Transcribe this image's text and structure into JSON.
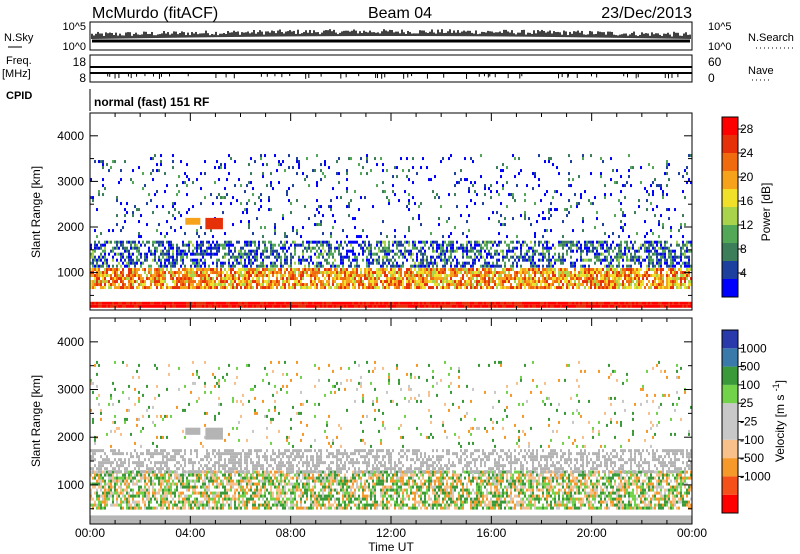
{
  "header": {
    "station": "McMurdo (fitACF)",
    "beam": "Beam 04",
    "date": "23/Dec/2013"
  },
  "noise_panel": {
    "left_label": "N.Sky",
    "right_label": "N.Search",
    "left_ticks": [
      "10^5",
      "10^0"
    ],
    "right_ticks": [
      "10^5",
      "10^0"
    ]
  },
  "freq_panel": {
    "left_label_1": "Freq.",
    "left_label_2": "[MHz]",
    "right_label": "Nave",
    "left_ticks": [
      "18",
      "8"
    ],
    "right_ticks": [
      "60",
      "0"
    ]
  },
  "cpid": {
    "label": "CPID",
    "program": "normal (fast) 151 RF"
  },
  "colors": {
    "power_scale": [
      "#0000ff",
      "#1d3f9e",
      "#3c7d5a",
      "#52a857",
      "#a8d34a",
      "#f0e02a",
      "#f6a21a",
      "#f06a0e",
      "#e63008",
      "#ff0000"
    ],
    "velocity_scale": [
      "#ff0000",
      "#f5501a",
      "#f59a2a",
      "#f8c08a",
      "#c8c8c8",
      "#c8c8c8",
      "#72d24a",
      "#3a9a3a",
      "#3a7aaa",
      "#2a3aaa"
    ],
    "ground_scatter": "#b4b4b4"
  },
  "chart_data": [
    {
      "type": "heatmap",
      "title": "",
      "xlabel": "Time UT",
      "ylabel": "Slant Range [km]",
      "x_ticks": [
        "00:00",
        "04:00",
        "08:00",
        "12:00",
        "16:00",
        "20:00",
        "00:00"
      ],
      "xlim": [
        0,
        24
      ],
      "ylim": [
        180,
        4500
      ],
      "y_ticks": [
        1000,
        2000,
        3000,
        4000
      ],
      "colorbar": {
        "label": "Power [dB]",
        "ticks": [
          4,
          8,
          12,
          16,
          20,
          24,
          28
        ],
        "range": [
          0,
          30
        ]
      },
      "bands": [
        {
          "name": "ground_scatter_red",
          "range_km": [
            230,
            360
          ],
          "value_db": 28,
          "coverage": 1.0
        },
        {
          "name": "main_echo_band",
          "range_km": [
            650,
            1100
          ],
          "value_db": 20,
          "coverage": 0.8
        },
        {
          "name": "upper_band",
          "range_km": [
            1150,
            1700
          ],
          "value_db": 6,
          "coverage": 0.55
        },
        {
          "name": "sparse_high",
          "range_km": [
            1800,
            3600
          ],
          "value_db": 4,
          "coverage": 0.08
        }
      ],
      "patches": [
        {
          "time_h": [
            3.8,
            4.4
          ],
          "range_km": [
            2050,
            2200
          ],
          "value_db": 18
        },
        {
          "time_h": [
            4.6,
            5.3
          ],
          "range_km": [
            1950,
            2200
          ],
          "value_db": 24
        }
      ]
    },
    {
      "type": "heatmap",
      "title": "",
      "xlabel": "Time UT",
      "ylabel": "Slant Range [km]",
      "x_ticks": [
        "00:00",
        "04:00",
        "08:00",
        "12:00",
        "16:00",
        "20:00",
        "00:00"
      ],
      "xlim": [
        0,
        24
      ],
      "ylim": [
        180,
        4500
      ],
      "y_ticks": [
        1000,
        2000,
        3000,
        4000
      ],
      "colorbar": {
        "label": "Velocity [m s^-1]",
        "ticks": [
          "1000",
          "500",
          "100",
          "25",
          "-25",
          "-100",
          "-500",
          "-1000"
        ]
      },
      "bands": [
        {
          "name": "ground_scatter_grey",
          "range_km": [
            230,
            360
          ],
          "value_ms": 0,
          "coverage": 1.0
        },
        {
          "name": "main_echo_band",
          "range_km": [
            500,
            1300
          ],
          "value_ms": 100,
          "coverage": 0.7
        },
        {
          "name": "upper_grey_band",
          "range_km": [
            1300,
            1750
          ],
          "value_ms": 0,
          "coverage": 0.5
        },
        {
          "name": "sparse_high",
          "range_km": [
            1800,
            3600
          ],
          "value_ms": -100,
          "coverage": 0.06
        }
      ],
      "patches": [
        {
          "time_h": [
            3.8,
            4.4
          ],
          "range_km": [
            2050,
            2200
          ],
          "value_ms": 0
        },
        {
          "time_h": [
            4.6,
            5.3
          ],
          "range_km": [
            1950,
            2200
          ],
          "value_ms": 0
        }
      ]
    }
  ]
}
